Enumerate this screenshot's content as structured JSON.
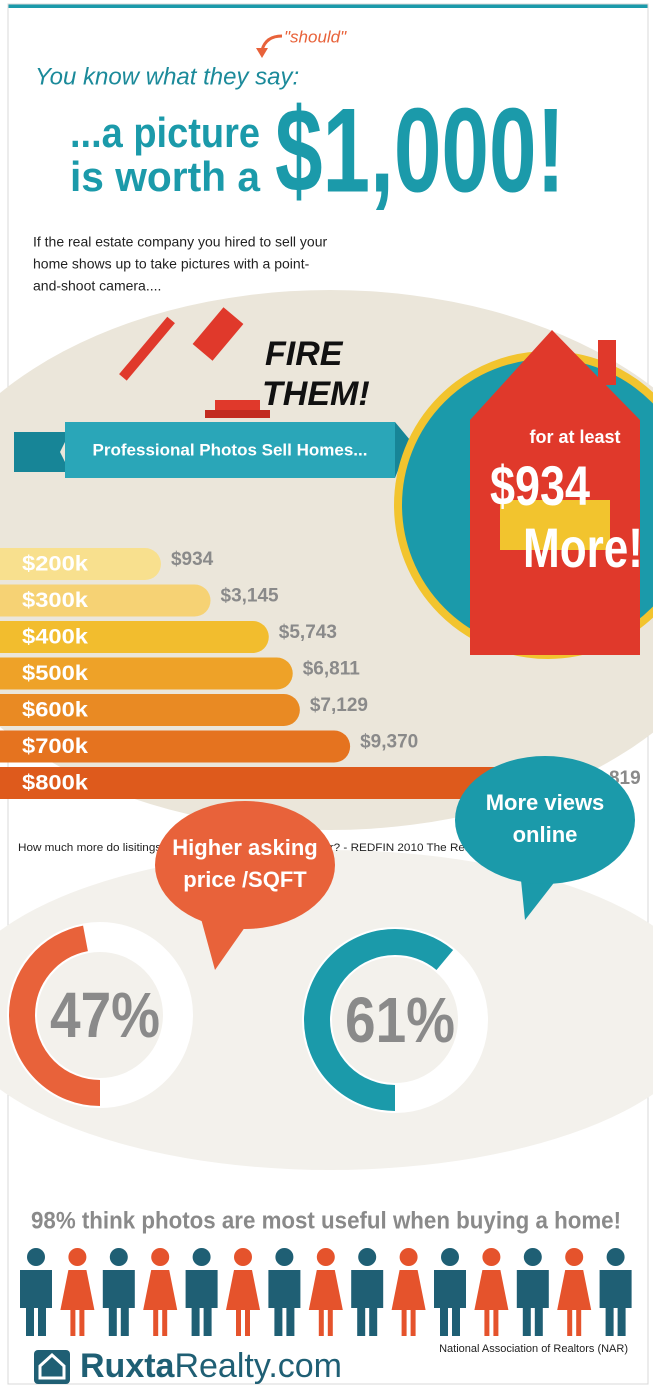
{
  "header": {
    "note": "\"should\"",
    "intro": "You know what they say:",
    "headline_lines": [
      "...a picture",
      "is worth a"
    ],
    "amount": "$1,000!"
  },
  "paragraph_lines": [
    "If the real estate company you hired to sell your",
    "home shows up to take pictures with a point-",
    "and-shoot camera...."
  ],
  "callout_lines": [
    "FIRE",
    "THEM!"
  ],
  "banner": "Professional Photos Sell Homes...",
  "house": {
    "top": "for at least",
    "amount": "$934",
    "bottom": "More!"
  },
  "chart_data": {
    "type": "bar",
    "orientation": "horizontal",
    "categories": [
      "$200k",
      "$300k",
      "$400k",
      "$500k",
      "$600k",
      "$700k",
      "$800k"
    ],
    "values": [
      934,
      3145,
      5743,
      6811,
      7129,
      9370,
      18819
    ],
    "value_labels": [
      "$934",
      "$3,145",
      "$5,743",
      "$6,811",
      "$7,129",
      "$9,370",
      "$18,819"
    ],
    "colors": [
      "#f8e08e",
      "#f6d274",
      "#f2bd2e",
      "#eea228",
      "#e98a23",
      "#e5731f",
      "#de5a1c"
    ]
  },
  "source": "How much more do lisitings shot with DSLR Cameras sell for? - REDFIN 2010 The Real Estate Scientist",
  "stats": [
    {
      "value": 47,
      "label": "47%",
      "caption_lines": [
        "Higher asking",
        "price /SQFT"
      ],
      "color": "#e8623a"
    },
    {
      "value": 61,
      "label": "61%",
      "caption_lines": [
        "More views",
        "online"
      ],
      "color": "#1b9aaa"
    }
  ],
  "people_caption": "98% think photos are most useful when buying a home!",
  "people_source": "National Association of Realtors (NAR)",
  "logo": {
    "bold": "Ruxta",
    "rest": "Realty.com"
  }
}
